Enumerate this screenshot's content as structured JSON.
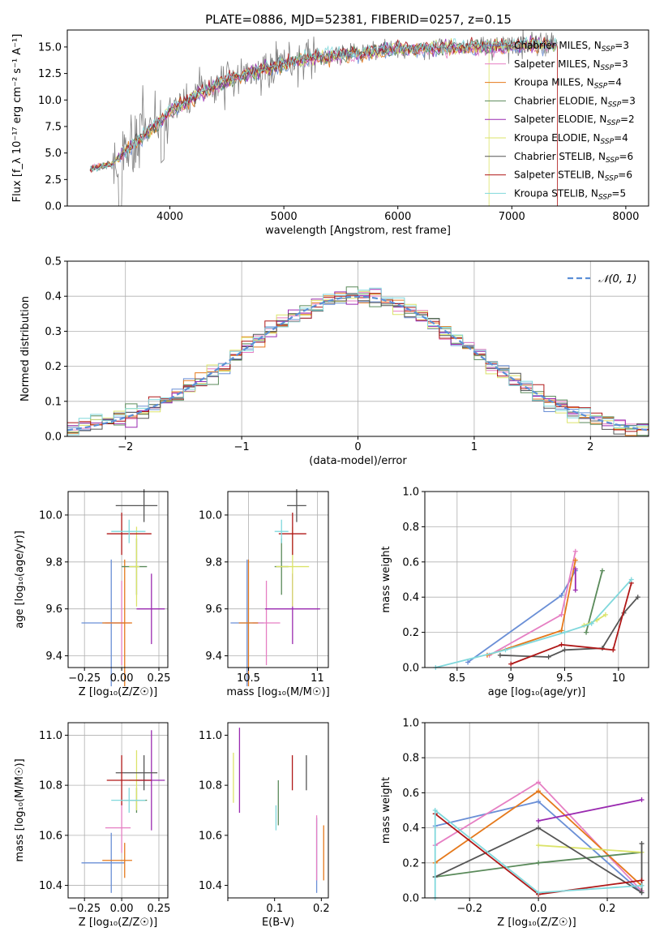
{
  "figure_title": "PLATE=0886, MJD=52381, FIBERID=0257, z=0.15",
  "colors": {
    "Chabrier MILES": "#6a8fd6",
    "Salpeter MILES": "#e67fc3",
    "Kroupa MILES": "#e5791c",
    "Chabrier ELODIE": "#5a8a5a",
    "Salpeter ELODIE": "#9a2ab0",
    "Kroupa ELODIE": "#dbe36a",
    "Chabrier STELIB": "#555555",
    "Salpeter STELIB": "#b01818",
    "Kroupa STELIB": "#80d8dc",
    "data": "#808080",
    "normal": "#5b8fd6"
  },
  "chart_data": [
    {
      "id": "spectrum",
      "type": "line",
      "title": "PLATE=0886, MJD=52381, FIBERID=0257, z=0.15",
      "xlabel": "wavelength [Angstrom, rest frame]",
      "ylabel": "Flux [f_λ 10⁻¹⁷ erg cm⁻² s⁻¹ A⁻¹]",
      "xlim": [
        3100,
        8200
      ],
      "ylim": [
        0,
        16.6
      ],
      "xticks": [
        4000,
        5000,
        6000,
        7000,
        8000
      ],
      "yticks": [
        0.0,
        2.5,
        5.0,
        7.5,
        10.0,
        12.5,
        15.0
      ],
      "grid": false,
      "legend_position": "right",
      "legend": [
        {
          "name": "Chabrier MILES",
          "sub": "3"
        },
        {
          "name": "Salpeter MILES",
          "sub": "3"
        },
        {
          "name": "Kroupa MILES",
          "sub": "4"
        },
        {
          "name": "Chabrier ELODIE",
          "sub": "3"
        },
        {
          "name": "Salpeter ELODIE",
          "sub": "2"
        },
        {
          "name": "Kroupa ELODIE",
          "sub": "4"
        },
        {
          "name": "Chabrier STELIB",
          "sub": "6"
        },
        {
          "name": "Salpeter STELIB",
          "sub": "6"
        },
        {
          "name": "Kroupa STELIB",
          "sub": "5"
        }
      ],
      "continuum": {
        "x": [
          3300,
          3500,
          3700,
          3900,
          4000,
          4200,
          4400,
          4600,
          4800,
          5000,
          5200,
          5400,
          5600,
          5800,
          6000,
          6200,
          6400,
          6600,
          6800,
          7000,
          7200,
          7400
        ],
        "y": [
          3.5,
          4.0,
          6.0,
          7.8,
          9.0,
          10.2,
          11.3,
          12.2,
          12.8,
          13.4,
          13.8,
          14.1,
          14.3,
          14.6,
          14.8,
          14.8,
          14.9,
          15.0,
          15.0,
          15.1,
          15.2,
          15.2
        ]
      }
    },
    {
      "id": "residuals",
      "type": "bar",
      "xlabel": "(data-model)/error",
      "ylabel": "Normed distribution",
      "xlim": [
        -2.5,
        2.5
      ],
      "ylim": [
        0,
        0.5
      ],
      "xticks": [
        -2,
        -1,
        0,
        1,
        2
      ],
      "yticks": [
        0.0,
        0.1,
        0.2,
        0.3,
        0.4,
        0.5
      ],
      "grid": true,
      "legend": [
        {
          "name": "𝒩(0, 1)"
        }
      ],
      "legend_position": "top-right",
      "bin_width": 0.1
    },
    {
      "id": "age-vs-Z",
      "type": "scatter",
      "xlabel": "Z [log₁₀(Z/Z☉)]",
      "ylabel": "age  [log₁₀(age/yr)]",
      "xlim": [
        -0.36,
        0.31
      ],
      "ylim": [
        9.35,
        10.1
      ],
      "xticks": [
        -0.25,
        0.0,
        0.25
      ],
      "xticklabels": [
        "−0.25",
        "0.00",
        "0.25"
      ],
      "yticks": [
        9.4,
        9.6,
        9.8,
        10.0
      ],
      "grid": true
    },
    {
      "id": "age-vs-mass",
      "type": "scatter",
      "xlabel": "mass [log₁₀(M/M☉)]",
      "xlim": [
        10.35,
        11.08
      ],
      "ylim": [
        9.35,
        10.1
      ],
      "xticks": [
        10.5,
        11.0
      ],
      "yticks": [
        9.4,
        9.6,
        9.8,
        10.0
      ],
      "grid": true
    },
    {
      "id": "weight-vs-age",
      "type": "line",
      "xlabel": "age  [log₁₀(age/yr)]",
      "ylabel": "mass weight",
      "xlim": [
        8.2,
        10.28
      ],
      "ylim": [
        0,
        1.0
      ],
      "xticks": [
        8.5,
        9.0,
        9.5,
        10.0
      ],
      "yticks": [
        0.0,
        0.2,
        0.4,
        0.6,
        0.8,
        1.0
      ],
      "grid": true
    },
    {
      "id": "mass-vs-Z",
      "type": "scatter",
      "xlabel": "Z [log₁₀(Z/Z☉)]",
      "ylabel": "mass [log₁₀(M/M☉)]",
      "xlim": [
        -0.36,
        0.31
      ],
      "ylim": [
        10.35,
        11.05
      ],
      "xticks": [
        -0.25,
        0.0,
        0.25
      ],
      "xticklabels": [
        "−0.25",
        "0.00",
        "0.25"
      ],
      "yticks": [
        10.4,
        10.6,
        10.8,
        11.0
      ],
      "grid": true
    },
    {
      "id": "mass-vs-EBV",
      "type": "scatter",
      "xlabel": "E(B-V)",
      "xlim": [
        0.0,
        0.215
      ],
      "ylim": [
        10.35,
        11.05
      ],
      "xticks": [
        0.0,
        0.1,
        0.2
      ],
      "yticks": [
        10.4,
        10.6,
        10.8,
        11.0
      ],
      "grid": false
    },
    {
      "id": "weight-vs-Z",
      "type": "line",
      "xlabel": "Z [log₁₀(Z/Z☉)]",
      "ylabel": "mass weight",
      "xlim": [
        -0.33,
        0.32
      ],
      "ylim": [
        0,
        1.0
      ],
      "xticks": [
        -0.2,
        0.0,
        0.2
      ],
      "xticklabels": [
        "−0.2",
        "0.0",
        "0.2"
      ],
      "yticks": [
        0.0,
        0.2,
        0.4,
        0.6,
        0.8,
        1.0
      ],
      "grid": true
    }
  ],
  "models": [
    {
      "name": "Chabrier MILES",
      "Z": -0.07,
      "Zlo": -0.27,
      "Zhi": 0.02,
      "age": 9.54,
      "ageErr": 0.27,
      "mass": 10.49,
      "massErr": 0.12,
      "massZlo": -0.27,
      "massZhi": 0.02,
      "ebv": 0.19,
      "ebvMass": 10.52,
      "ebvErr": 0.15,
      "ageW": [
        [
          8.6,
          0.03
        ],
        [
          9.47,
          0.41
        ],
        [
          9.6,
          0.55
        ]
      ],
      "zW": [
        [
          -0.3,
          0.41
        ],
        [
          0.0,
          0.55
        ],
        [
          0.3,
          0.03
        ]
      ]
    },
    {
      "name": "Salpeter MILES",
      "Z": 0.0,
      "Zlo": -0.11,
      "Zhi": 0.06,
      "age": 9.54,
      "ageErr": 0.18,
      "mass": 10.63,
      "massErr": 0.1,
      "massZlo": -0.11,
      "massZhi": 0.06,
      "ebv": 0.19,
      "ebvMass": 10.55,
      "ebvErr": 0.13,
      "ageW": [
        [
          8.8,
          0.07
        ],
        [
          9.47,
          0.3
        ],
        [
          9.6,
          0.66
        ]
      ],
      "zW": [
        [
          -0.3,
          0.3
        ],
        [
          0.0,
          0.66
        ],
        [
          0.3,
          0.04
        ]
      ]
    },
    {
      "name": "Kroupa MILES",
      "Z": 0.02,
      "Zlo": -0.13,
      "Zhi": 0.07,
      "age": 9.54,
      "ageErr": 0.27,
      "mass": 10.5,
      "massErr": 0.07,
      "massZlo": -0.13,
      "massZhi": 0.07,
      "ebv": 0.205,
      "ebvMass": 10.53,
      "ebvErr": 0.11,
      "ageW": [
        [
          8.78,
          0.07
        ],
        [
          9.47,
          0.21
        ],
        [
          9.6,
          0.61
        ]
      ],
      "zW": [
        [
          -0.3,
          0.2
        ],
        [
          0.0,
          0.61
        ],
        [
          0.3,
          0.07
        ]
      ]
    },
    {
      "name": "Chabrier ELODIE",
      "Z": 0.1,
      "Zlo": 0.0,
      "Zhi": 0.17,
      "age": 9.78,
      "ageErr": 0.12,
      "mass": 10.74,
      "massErr": 0.05,
      "massZlo": 0.0,
      "massZhi": 0.17,
      "ebv": 0.108,
      "ebvMass": 10.73,
      "ebvErr": 0.09,
      "ageW": [
        [
          9.7,
          0.2
        ],
        [
          9.85,
          0.55
        ]
      ],
      "zW": [
        [
          -0.3,
          0.12
        ],
        [
          0.0,
          0.2
        ],
        [
          0.3,
          0.26
        ]
      ]
    },
    {
      "name": "Salpeter ELODIE",
      "Z": 0.2,
      "Zlo": 0.1,
      "Zhi": 0.29,
      "age": 9.6,
      "ageErr": 0.15,
      "mass": 10.82,
      "massErr": 0.2,
      "massZlo": 0.1,
      "massZhi": 0.29,
      "ebv": 0.025,
      "ebvMass": 10.86,
      "ebvErr": 0.17,
      "ageW": [
        [
          9.6,
          0.44
        ],
        [
          9.6,
          0.56
        ]
      ],
      "zW": [
        [
          0.0,
          0.44
        ],
        [
          0.3,
          0.56
        ]
      ]
    },
    {
      "name": "Kroupa ELODIE",
      "Z": 0.1,
      "Zlo": 0.05,
      "Zhi": 0.12,
      "age": 9.78,
      "ageErr": 0.17,
      "mass": 10.82,
      "massErr": 0.12,
      "massZlo": 0.05,
      "massZhi": 0.12,
      "ebv": 0.012,
      "ebvMass": 10.83,
      "ebvErr": 0.1,
      "ageW": [
        [
          9.68,
          0.24
        ],
        [
          9.8,
          0.27
        ],
        [
          9.88,
          0.3
        ]
      ],
      "zW": [
        [
          0.0,
          0.3
        ],
        [
          0.3,
          0.26
        ]
      ]
    },
    {
      "name": "Chabrier STELIB",
      "Z": 0.15,
      "Zlo": -0.04,
      "Zhi": 0.24,
      "age": 10.04,
      "ageErr": 0.07,
      "mass": 10.85,
      "massErr": 0.07,
      "massZlo": -0.04,
      "massZhi": 0.24,
      "ebv": 0.168,
      "ebvMass": 10.85,
      "ebvErr": 0.07,
      "ageW": [
        [
          8.9,
          0.07
        ],
        [
          9.35,
          0.06
        ],
        [
          9.5,
          0.1
        ],
        [
          9.85,
          0.11
        ],
        [
          10.05,
          0.31
        ],
        [
          10.18,
          0.4
        ]
      ],
      "zW": [
        [
          -0.3,
          0.12
        ],
        [
          0.0,
          0.4
        ],
        [
          0.3,
          0.03
        ],
        [
          0.3,
          0.31
        ]
      ]
    },
    {
      "name": "Salpeter STELIB",
      "Z": 0.0,
      "Zlo": -0.1,
      "Zhi": 0.2,
      "age": 9.92,
      "ageErr": 0.09,
      "mass": 10.82,
      "massErr": 0.1,
      "massZlo": -0.1,
      "massZhi": 0.2,
      "ebv": 0.138,
      "ebvMass": 10.85,
      "ebvErr": 0.07,
      "ageW": [
        [
          9.0,
          0.02
        ],
        [
          9.47,
          0.13
        ],
        [
          9.95,
          0.1
        ],
        [
          10.12,
          0.48
        ]
      ],
      "zW": [
        [
          -0.3,
          0.48
        ],
        [
          0.0,
          0.02
        ],
        [
          0.3,
          0.1
        ]
      ]
    },
    {
      "name": "Kroupa STELIB",
      "Z": 0.05,
      "Zlo": -0.07,
      "Zhi": 0.16,
      "age": 9.93,
      "ageErr": 0.05,
      "mass": 10.74,
      "massErr": 0.05,
      "massZlo": -0.07,
      "massZhi": 0.16,
      "ebv": 0.103,
      "ebvMass": 10.67,
      "ebvErr": 0.05,
      "ageW": [
        [
          8.3,
          0.0
        ],
        [
          8.95,
          0.1
        ],
        [
          9.5,
          0.2
        ],
        [
          9.75,
          0.25
        ],
        [
          10.12,
          0.5
        ]
      ],
      "zW": [
        [
          -0.3,
          0.0
        ],
        [
          -0.3,
          0.5
        ],
        [
          0.0,
          0.03
        ],
        [
          0.3,
          0.07
        ]
      ]
    }
  ]
}
